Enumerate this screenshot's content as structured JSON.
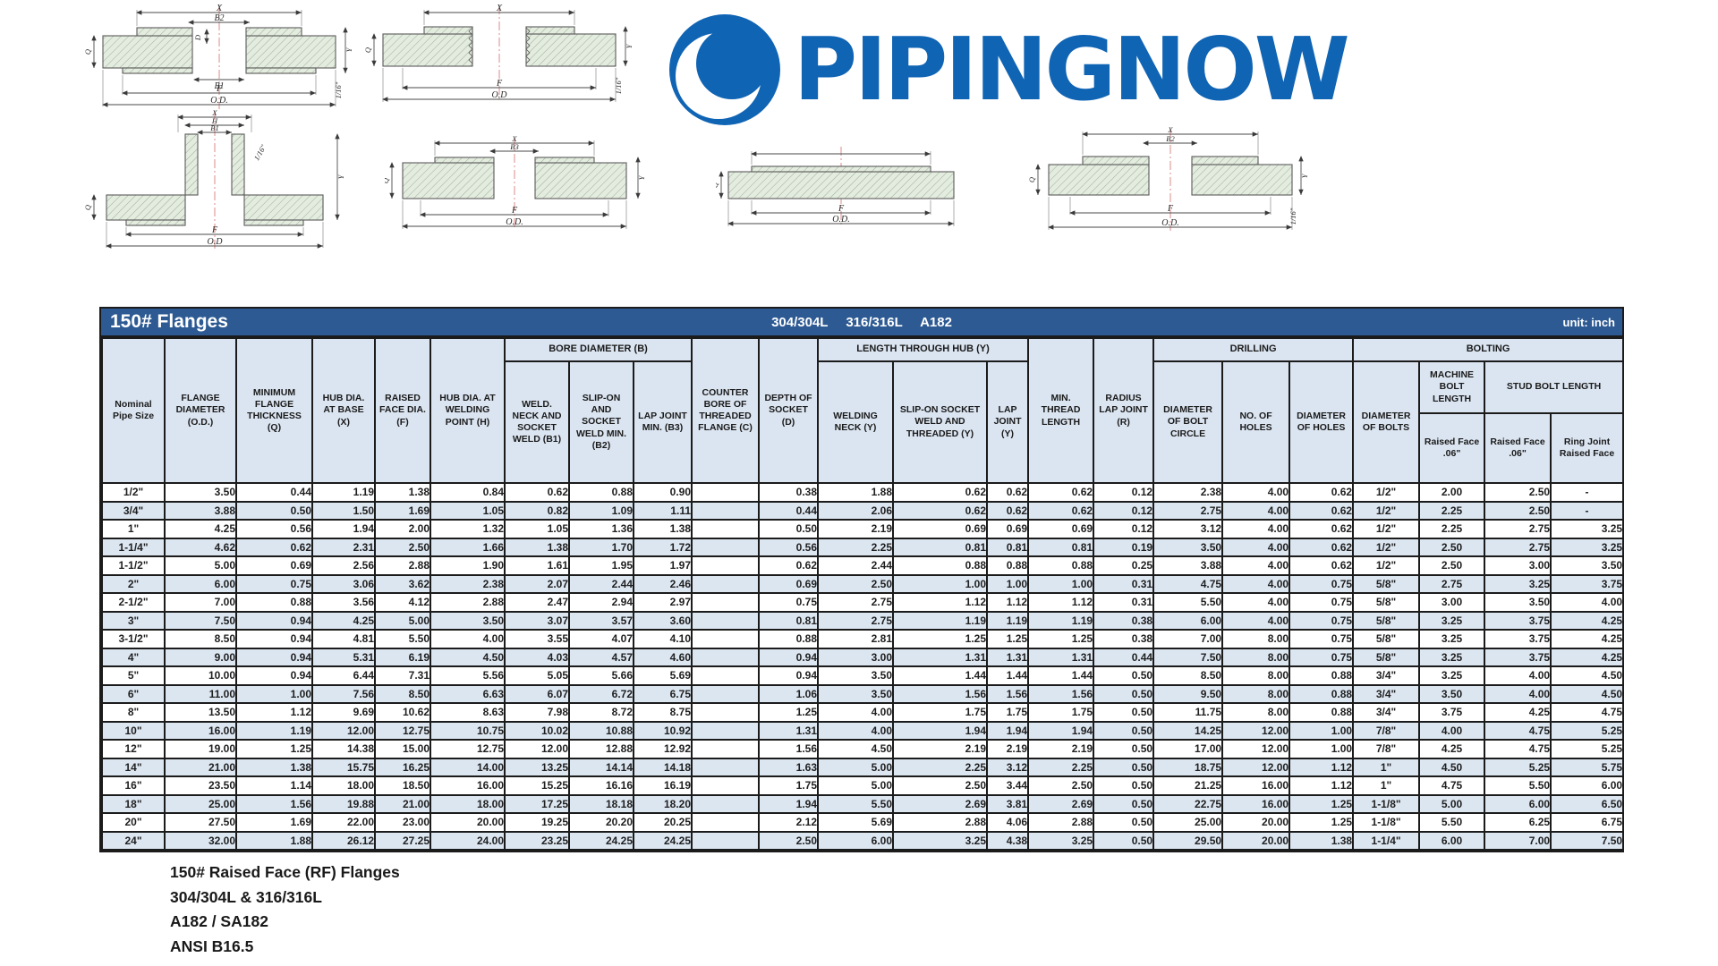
{
  "logo": {
    "text": "PIPINGNOW",
    "color": "#1064b4"
  },
  "colors": {
    "title_bar": "#2d5a93",
    "header_bg": "#dbe5f1",
    "row_alt": "#dce6f1",
    "logo_blue": "#1064b4"
  },
  "diagrams": {
    "socket_weld": {
      "x": "X",
      "b2": "B2",
      "d": "D",
      "b1": "B1",
      "f": "F",
      "od": "O.D.",
      "q": "Q",
      "y": "Y",
      "tol": "1/16\""
    },
    "threaded": {
      "x": "X",
      "f": "F",
      "od": "O.D",
      "q": "Q",
      "y": "Y",
      "tol": "1/16\""
    },
    "weld_neck": {
      "x": "X",
      "h": "H",
      "b1": "B1",
      "f": "F",
      "od": "O.D",
      "q": "Q",
      "y": "Y",
      "tol": "1/16\""
    },
    "slip_on": {
      "x": "X",
      "b3": "B3",
      "f": "F",
      "od": "O.D.",
      "q": "Q",
      "y": "Y"
    },
    "blind": {
      "f": "F",
      "od": "O.D.",
      "q": "Q"
    },
    "lap_joint": {
      "x": "X",
      "b2": "B2",
      "f": "F",
      "od": "O.D.",
      "q": "Q",
      "y": "Y",
      "tol": "1/16\""
    }
  },
  "table": {
    "title": "150# Flanges",
    "subtitle": "304/304L 316/316L A182",
    "unit": "unit: inch",
    "header": {
      "nominal": "Nominal Pipe Size",
      "flange_diameter": "FLANGE DIAMETER (O.D.)",
      "min_flange_thickness": "MINIMUM FLANGE THICKNESS (Q)",
      "hub_dia_base": "HUB DIA. AT BASE (X)",
      "raised_face_dia": "RAISED FACE DIA. (F)",
      "hub_dia_welding": "HUB DIA. AT WELDING POINT (H)",
      "bore_diameter_group": "BORE DIAMETER (B)",
      "b1": "WELD. NECK AND SOCKET WELD (B1)",
      "b2": "SLIP-ON AND SOCKET WELD MIN. (B2)",
      "b3": "LAP JOINT MIN. (B3)",
      "counter_bore": "COUNTER BORE OF THREADED FLANGE (C)",
      "depth_socket": "DEPTH OF SOCKET (D)",
      "length_hub_group": "LENGTH THROUGH HUB (Y)",
      "welding_neck": "WELDING NECK (Y)",
      "slip_on_threaded": "SLIP-ON SOCKET WELD AND THREADED (Y)",
      "lap_joint_y": "LAP JOINT (Y)",
      "min_thread": "MIN. THREAD LENGTH",
      "radius_lap_joint": "RADIUS LAP JOINT (R)",
      "drilling_group": "DRILLING",
      "bolt_circle": "DIAMETER OF BOLT CIRCLE",
      "no_holes": "NO. OF HOLES",
      "dia_holes": "DIAMETER OF HOLES",
      "bolting_group": "BOLTING",
      "dia_bolts": "DIAMETER OF BOLTS",
      "machine_bolt_length": "MACHINE BOLT LENGTH",
      "stud_bolt_length": "STUD BOLT LENGTH",
      "raised_face_machine": "Raised Face .06\"",
      "raised_face_stud": "Raised Face .06\"",
      "ring_joint": "Ring Joint Raised Face"
    },
    "rows": [
      [
        "1/2\"",
        "3.50",
        "0.44",
        "1.19",
        "1.38",
        "0.84",
        "0.62",
        "0.88",
        "0.90",
        "",
        "0.38",
        "1.88",
        "0.62",
        "0.62",
        "0.62",
        "0.12",
        "2.38",
        "4.00",
        "0.62",
        "1/2\"",
        "2.00",
        "2.50",
        "-"
      ],
      [
        "3/4\"",
        "3.88",
        "0.50",
        "1.50",
        "1.69",
        "1.05",
        "0.82",
        "1.09",
        "1.11",
        "",
        "0.44",
        "2.06",
        "0.62",
        "0.62",
        "0.62",
        "0.12",
        "2.75",
        "4.00",
        "0.62",
        "1/2\"",
        "2.25",
        "2.50",
        "-"
      ],
      [
        "1\"",
        "4.25",
        "0.56",
        "1.94",
        "2.00",
        "1.32",
        "1.05",
        "1.36",
        "1.38",
        "",
        "0.50",
        "2.19",
        "0.69",
        "0.69",
        "0.69",
        "0.12",
        "3.12",
        "4.00",
        "0.62",
        "1/2\"",
        "2.25",
        "2.75",
        "3.25"
      ],
      [
        "1-1/4\"",
        "4.62",
        "0.62",
        "2.31",
        "2.50",
        "1.66",
        "1.38",
        "1.70",
        "1.72",
        "",
        "0.56",
        "2.25",
        "0.81",
        "0.81",
        "0.81",
        "0.19",
        "3.50",
        "4.00",
        "0.62",
        "1/2\"",
        "2.50",
        "2.75",
        "3.25"
      ],
      [
        "1-1/2\"",
        "5.00",
        "0.69",
        "2.56",
        "2.88",
        "1.90",
        "1.61",
        "1.95",
        "1.97",
        "",
        "0.62",
        "2.44",
        "0.88",
        "0.88",
        "0.88",
        "0.25",
        "3.88",
        "4.00",
        "0.62",
        "1/2\"",
        "2.50",
        "3.00",
        "3.50"
      ],
      [
        "2\"",
        "6.00",
        "0.75",
        "3.06",
        "3.62",
        "2.38",
        "2.07",
        "2.44",
        "2.46",
        "",
        "0.69",
        "2.50",
        "1.00",
        "1.00",
        "1.00",
        "0.31",
        "4.75",
        "4.00",
        "0.75",
        "5/8\"",
        "2.75",
        "3.25",
        "3.75"
      ],
      [
        "2-1/2\"",
        "7.00",
        "0.88",
        "3.56",
        "4.12",
        "2.88",
        "2.47",
        "2.94",
        "2.97",
        "",
        "0.75",
        "2.75",
        "1.12",
        "1.12",
        "1.12",
        "0.31",
        "5.50",
        "4.00",
        "0.75",
        "5/8\"",
        "3.00",
        "3.50",
        "4.00"
      ],
      [
        "3\"",
        "7.50",
        "0.94",
        "4.25",
        "5.00",
        "3.50",
        "3.07",
        "3.57",
        "3.60",
        "",
        "0.81",
        "2.75",
        "1.19",
        "1.19",
        "1.19",
        "0.38",
        "6.00",
        "4.00",
        "0.75",
        "5/8\"",
        "3.25",
        "3.75",
        "4.25"
      ],
      [
        "3-1/2\"",
        "8.50",
        "0.94",
        "4.81",
        "5.50",
        "4.00",
        "3.55",
        "4.07",
        "4.10",
        "",
        "0.88",
        "2.81",
        "1.25",
        "1.25",
        "1.25",
        "0.38",
        "7.00",
        "8.00",
        "0.75",
        "5/8\"",
        "3.25",
        "3.75",
        "4.25"
      ],
      [
        "4\"",
        "9.00",
        "0.94",
        "5.31",
        "6.19",
        "4.50",
        "4.03",
        "4.57",
        "4.60",
        "",
        "0.94",
        "3.00",
        "1.31",
        "1.31",
        "1.31",
        "0.44",
        "7.50",
        "8.00",
        "0.75",
        "5/8\"",
        "3.25",
        "3.75",
        "4.25"
      ],
      [
        "5\"",
        "10.00",
        "0.94",
        "6.44",
        "7.31",
        "5.56",
        "5.05",
        "5.66",
        "5.69",
        "",
        "0.94",
        "3.50",
        "1.44",
        "1.44",
        "1.44",
        "0.50",
        "8.50",
        "8.00",
        "0.88",
        "3/4\"",
        "3.25",
        "4.00",
        "4.50"
      ],
      [
        "6\"",
        "11.00",
        "1.00",
        "7.56",
        "8.50",
        "6.63",
        "6.07",
        "6.72",
        "6.75",
        "",
        "1.06",
        "3.50",
        "1.56",
        "1.56",
        "1.56",
        "0.50",
        "9.50",
        "8.00",
        "0.88",
        "3/4\"",
        "3.50",
        "4.00",
        "4.50"
      ],
      [
        "8\"",
        "13.50",
        "1.12",
        "9.69",
        "10.62",
        "8.63",
        "7.98",
        "8.72",
        "8.75",
        "",
        "1.25",
        "4.00",
        "1.75",
        "1.75",
        "1.75",
        "0.50",
        "11.75",
        "8.00",
        "0.88",
        "3/4\"",
        "3.75",
        "4.25",
        "4.75"
      ],
      [
        "10\"",
        "16.00",
        "1.19",
        "12.00",
        "12.75",
        "10.75",
        "10.02",
        "10.88",
        "10.92",
        "",
        "1.31",
        "4.00",
        "1.94",
        "1.94",
        "1.94",
        "0.50",
        "14.25",
        "12.00",
        "1.00",
        "7/8\"",
        "4.00",
        "4.75",
        "5.25"
      ],
      [
        "12\"",
        "19.00",
        "1.25",
        "14.38",
        "15.00",
        "12.75",
        "12.00",
        "12.88",
        "12.92",
        "",
        "1.56",
        "4.50",
        "2.19",
        "2.19",
        "2.19",
        "0.50",
        "17.00",
        "12.00",
        "1.00",
        "7/8\"",
        "4.25",
        "4.75",
        "5.25"
      ],
      [
        "14\"",
        "21.00",
        "1.38",
        "15.75",
        "16.25",
        "14.00",
        "13.25",
        "14.14",
        "14.18",
        "",
        "1.63",
        "5.00",
        "2.25",
        "3.12",
        "2.25",
        "0.50",
        "18.75",
        "12.00",
        "1.12",
        "1\"",
        "4.50",
        "5.25",
        "5.75"
      ],
      [
        "16\"",
        "23.50",
        "1.14",
        "18.00",
        "18.50",
        "16.00",
        "15.25",
        "16.16",
        "16.19",
        "",
        "1.75",
        "5.00",
        "2.50",
        "3.44",
        "2.50",
        "0.50",
        "21.25",
        "16.00",
        "1.12",
        "1\"",
        "4.75",
        "5.50",
        "6.00"
      ],
      [
        "18\"",
        "25.00",
        "1.56",
        "19.88",
        "21.00",
        "18.00",
        "17.25",
        "18.18",
        "18.20",
        "",
        "1.94",
        "5.50",
        "2.69",
        "3.81",
        "2.69",
        "0.50",
        "22.75",
        "16.00",
        "1.25",
        "1-1/8\"",
        "5.00",
        "6.00",
        "6.50"
      ],
      [
        "20\"",
        "27.50",
        "1.69",
        "22.00",
        "23.00",
        "20.00",
        "19.25",
        "20.20",
        "20.25",
        "",
        "2.12",
        "5.69",
        "2.88",
        "4.06",
        "2.88",
        "0.50",
        "25.00",
        "20.00",
        "1.25",
        "1-1/8\"",
        "5.50",
        "6.25",
        "6.75"
      ],
      [
        "24\"",
        "32.00",
        "1.88",
        "26.12",
        "27.25",
        "24.00",
        "23.25",
        "24.25",
        "24.25",
        "",
        "2.50",
        "6.00",
        "3.25",
        "4.38",
        "3.25",
        "0.50",
        "29.50",
        "20.00",
        "1.38",
        "1-1/4\"",
        "6.00",
        "7.00",
        "7.50"
      ]
    ]
  },
  "footer": {
    "lines": [
      "150# Raised Face (RF) Flanges",
      "304/304L & 316/316L",
      "A182 / SA182",
      "ANSI B16.5"
    ]
  }
}
